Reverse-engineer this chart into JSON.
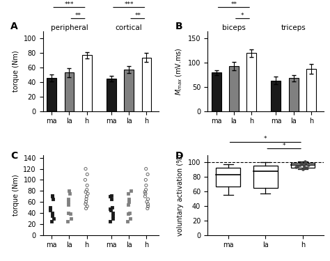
{
  "panel_A": {
    "title": "A",
    "group_labels_top": [
      "peripheral",
      "cortical"
    ],
    "bar_labels": [
      "ma",
      "la",
      "h"
    ],
    "colors": [
      "#1a1a1a",
      "#808080",
      "#ffffff"
    ],
    "peripheral_means": [
      46,
      53,
      77
    ],
    "peripheral_errors": [
      5,
      6,
      4
    ],
    "cortical_means": [
      45,
      57,
      74
    ],
    "cortical_errors": [
      4,
      5,
      6
    ],
    "ylabel": "torque (Nm)",
    "ylim": [
      0,
      110
    ],
    "yticks": [
      0,
      20,
      40,
      60,
      80,
      100
    ]
  },
  "panel_B": {
    "title": "B",
    "group_labels_top": [
      "biceps",
      "triceps"
    ],
    "bar_labels": [
      "ma",
      "la",
      "h"
    ],
    "colors": [
      "#1a1a1a",
      "#808080",
      "#ffffff"
    ],
    "biceps_means": [
      80,
      93,
      120
    ],
    "biceps_errors": [
      5,
      8,
      8
    ],
    "triceps_means": [
      63,
      68,
      87
    ],
    "triceps_errors": [
      8,
      7,
      10
    ],
    "ylabel": "M_max (mV.ms)",
    "ylim": [
      0,
      165
    ],
    "yticks": [
      0,
      50,
      100,
      150
    ]
  },
  "panel_C": {
    "title": "C",
    "bar_labels": [
      "ma",
      "la",
      "h",
      "ma",
      "la",
      "h"
    ],
    "colors": [
      "#1a1a1a",
      "#808080",
      "#ffffff"
    ],
    "ylabel": "torque (Nm)",
    "ylim": [
      0,
      145
    ],
    "yticks": [
      0,
      20,
      40,
      60,
      80,
      100,
      120,
      140
    ],
    "peripheral_ma": [
      25,
      30,
      35,
      40,
      45,
      47,
      50,
      65,
      70,
      72
    ],
    "peripheral_la": [
      25,
      30,
      38,
      40,
      55,
      60,
      65,
      75,
      80
    ],
    "peripheral_h": [
      48,
      52,
      56,
      60,
      65,
      70,
      75,
      78,
      82,
      90,
      100,
      110,
      120
    ],
    "cortical_ma": [
      25,
      30,
      35,
      40,
      45,
      47,
      50,
      65,
      70,
      72
    ],
    "cortical_la": [
      25,
      30,
      38,
      40,
      55,
      60,
      65,
      75,
      80
    ],
    "cortical_h": [
      48,
      52,
      56,
      60,
      65,
      70,
      75,
      78,
      82,
      90,
      100,
      110,
      120
    ]
  },
  "panel_D": {
    "title": "D",
    "bar_labels": [
      "ma",
      "la",
      "h"
    ],
    "ylabel": "voluntary activation (%)",
    "ylim": [
      0,
      110
    ],
    "yticks": [
      0,
      20,
      40,
      60,
      80,
      100
    ],
    "ma_box": {
      "q1": 67,
      "median": 83,
      "q3": 93,
      "whisker_lo": 55,
      "whisker_hi": 97
    },
    "la_box": {
      "q1": 65,
      "median": 88,
      "q3": 95,
      "whisker_lo": 57,
      "whisker_hi": 100
    },
    "h_box": {
      "q1": 93,
      "median": 96,
      "q3": 99,
      "whisker_lo": 91,
      "whisker_hi": 101
    },
    "dashed_line_y": 100
  }
}
